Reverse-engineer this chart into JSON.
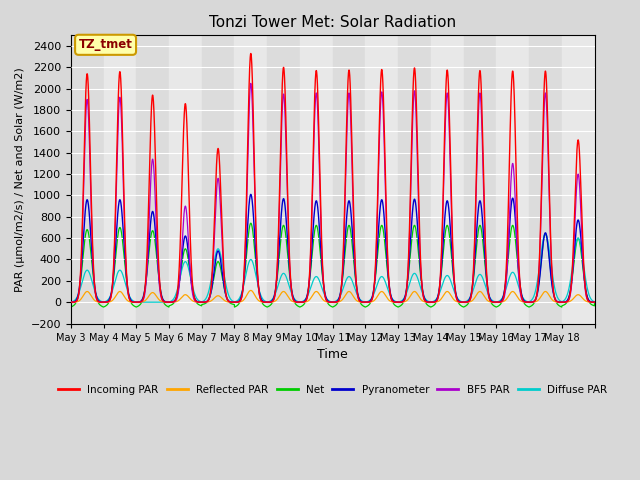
{
  "title": "Tonzi Tower Met: Solar Radiation",
  "xlabel": "Time",
  "ylabel": "PAR (μmol/m2/s) / Net and Solar (W/m2)",
  "ylim": [
    -200,
    2500
  ],
  "yticks": [
    -200,
    0,
    200,
    400,
    600,
    800,
    1000,
    1200,
    1400,
    1600,
    1800,
    2000,
    2200,
    2400
  ],
  "bg_color": "#d8d8d8",
  "plot_bg": "#e8e8e8",
  "annotation_text": "TZ_tmet",
  "annotation_color": "#8B0000",
  "annotation_bg": "#ffffaa",
  "annotation_border": "#cc9900",
  "colors": {
    "incoming_par": "#ff0000",
    "reflected_par": "#ffa500",
    "net": "#00cc00",
    "pyranometer": "#0000cc",
    "bf5_par": "#aa00cc",
    "diffuse_par": "#00cccc"
  },
  "legend_labels": [
    "Incoming PAR",
    "Reflected PAR",
    "Net",
    "Pyranometer",
    "BF5 PAR",
    "Diffuse PAR"
  ],
  "num_days": 16,
  "start_day": 3,
  "daily_peaks": [
    2140,
    2160,
    1940,
    1860,
    1440,
    2330,
    2200,
    2170,
    2175,
    2180,
    2195,
    2175,
    2170,
    2165,
    2165,
    1520
  ],
  "pyranometer_peaks": [
    960,
    960,
    850,
    620,
    480,
    1010,
    970,
    950,
    950,
    960,
    965,
    950,
    950,
    975,
    650,
    770
  ],
  "bf5_peaks": [
    1900,
    1920,
    1340,
    900,
    1160,
    2050,
    1950,
    1960,
    1960,
    1970,
    1980,
    1960,
    1960,
    1300,
    1960,
    1200
  ],
  "net_peaks": [
    680,
    700,
    670,
    500,
    380,
    740,
    720,
    720,
    720,
    720,
    720,
    720,
    720,
    720,
    640,
    600
  ],
  "net_troughs": [
    -80,
    -80,
    -80,
    -60,
    -40,
    -80,
    -80,
    -80,
    -80,
    -80,
    -80,
    -80,
    -80,
    -80,
    -80,
    -60
  ],
  "reflected_peaks": [
    100,
    100,
    90,
    70,
    60,
    110,
    100,
    100,
    100,
    100,
    100,
    100,
    100,
    100,
    100,
    70
  ],
  "diffuse_peaks": [
    300,
    300,
    0,
    380,
    500,
    400,
    270,
    240,
    240,
    240,
    270,
    250,
    260,
    280,
    640,
    600
  ],
  "sigma_incoming": 0.1,
  "sigma_bf5": 0.1,
  "sigma_pyr": 0.12,
  "sigma_net": 0.13,
  "sigma_ref": 0.12,
  "sigma_diffuse": 0.16,
  "points_per_day": 480
}
